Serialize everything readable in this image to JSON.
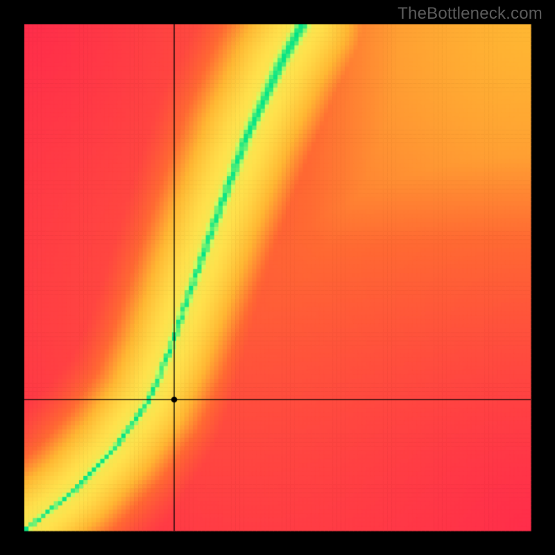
{
  "watermark": {
    "text": "TheBottleneck.com",
    "color": "#5c5c5c",
    "fontsize": 24
  },
  "plot": {
    "type": "heatmap",
    "canvas_size": 800,
    "black_border": 35,
    "grid_cells": 120,
    "background_color": "#000000",
    "colors": {
      "low": "#ff2a4c",
      "mid": "#ffcc33",
      "high": "#00e487",
      "peak": "#00e487"
    },
    "gradient_stops": [
      {
        "t": 0.0,
        "hex": "#ff2a4c"
      },
      {
        "t": 0.35,
        "hex": "#ff6a33"
      },
      {
        "t": 0.55,
        "hex": "#ffb733"
      },
      {
        "t": 0.75,
        "hex": "#ffe24d"
      },
      {
        "t": 0.9,
        "hex": "#c9ff66"
      },
      {
        "t": 1.0,
        "hex": "#00e487"
      }
    ],
    "ridge": {
      "points": [
        {
          "fx": 0.0,
          "fy": 0.0
        },
        {
          "fx": 0.1,
          "fy": 0.08
        },
        {
          "fx": 0.18,
          "fy": 0.165
        },
        {
          "fx": 0.245,
          "fy": 0.255
        },
        {
          "fx": 0.285,
          "fy": 0.35
        },
        {
          "fx": 0.33,
          "fy": 0.48
        },
        {
          "fx": 0.38,
          "fy": 0.62
        },
        {
          "fx": 0.44,
          "fy": 0.78
        },
        {
          "fx": 0.505,
          "fy": 0.92
        },
        {
          "fx": 0.55,
          "fy": 1.0
        }
      ],
      "width_start": 0.02,
      "width_end": 0.053,
      "softness": 0.115
    },
    "ambient": {
      "hot_corner": {
        "fx": 1.0,
        "fy": 1.0
      },
      "cold_corners": [
        {
          "fx": 0.0,
          "fy": 1.0
        },
        {
          "fx": 1.0,
          "fy": 0.0
        }
      ],
      "falloff": 1.32
    },
    "crosshair": {
      "fx": 0.296,
      "fy": 0.259,
      "line_color": "#000000",
      "line_width": 1.3,
      "dot_radius": 4.3,
      "dot_color": "#000000"
    }
  }
}
